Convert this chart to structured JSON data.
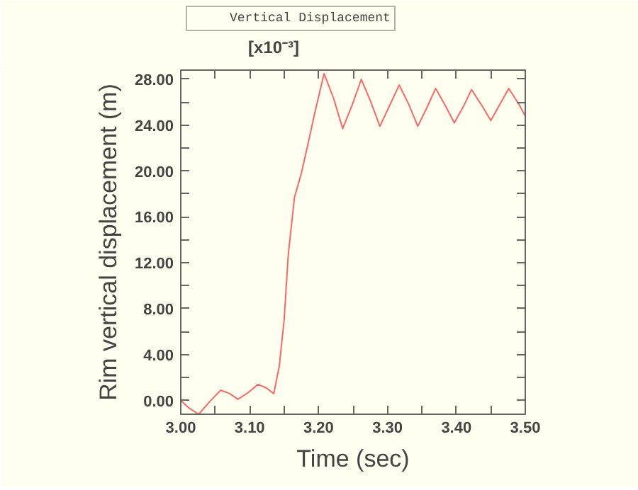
{
  "chart_data": {
    "type": "line",
    "xlabel": "Time (sec)",
    "ylabel": "Rim vertical displacement (m)",
    "annotations": [
      "[x10⁻³]"
    ],
    "x": [
      3.0,
      3.013,
      3.026,
      3.042,
      3.058,
      3.071,
      3.083,
      3.098,
      3.112,
      3.124,
      3.135,
      3.143,
      3.15,
      3.156,
      3.165,
      3.175,
      3.184,
      3.195,
      3.208,
      3.222,
      3.235,
      3.249,
      3.262,
      3.276,
      3.289,
      3.303,
      3.317,
      3.331,
      3.344,
      3.357,
      3.37,
      3.384,
      3.397,
      3.41,
      3.422,
      3.436,
      3.45,
      3.463,
      3.476,
      3.49,
      3.5
    ],
    "series": [
      {
        "name": "Vertical Displacement",
        "color": "#ff6666",
        "values": [
          0.0,
          -0.7,
          -1.2,
          -0.1,
          0.9,
          0.6,
          0.1,
          0.7,
          1.4,
          1.1,
          0.6,
          3.0,
          7.0,
          12.7,
          17.7,
          19.8,
          22.2,
          25.2,
          28.5,
          26.3,
          23.7,
          25.8,
          28.0,
          26.0,
          23.9,
          25.7,
          27.5,
          25.8,
          23.9,
          25.5,
          27.2,
          25.7,
          24.2,
          25.6,
          27.1,
          25.8,
          24.4,
          25.8,
          27.2,
          25.9,
          24.8
        ]
      }
    ],
    "xlim": [
      3.0,
      3.5
    ],
    "ylim": [
      -1.2,
      28.8
    ],
    "xticks": [
      {
        "value": 3.0,
        "label": "3.00"
      },
      {
        "value": 3.05,
        "label": null
      },
      {
        "value": 3.1,
        "label": "3.10"
      },
      {
        "value": 3.15,
        "label": null
      },
      {
        "value": 3.2,
        "label": "3.20"
      },
      {
        "value": 3.25,
        "label": null
      },
      {
        "value": 3.3,
        "label": "3.30"
      },
      {
        "value": 3.35,
        "label": null
      },
      {
        "value": 3.4,
        "label": "3.40"
      },
      {
        "value": 3.45,
        "label": null
      },
      {
        "value": 3.5,
        "label": "3.50"
      }
    ],
    "yticks": [
      {
        "value": 0,
        "label": "0.00"
      },
      {
        "value": 2,
        "label": null
      },
      {
        "value": 4,
        "label": "4.00"
      },
      {
        "value": 6,
        "label": null
      },
      {
        "value": 8,
        "label": "8.00"
      },
      {
        "value": 10,
        "label": null
      },
      {
        "value": 12,
        "label": "12.00"
      },
      {
        "value": 14,
        "label": null
      },
      {
        "value": 16,
        "label": "16.00"
      },
      {
        "value": 18,
        "label": null
      },
      {
        "value": 20,
        "label": "20.00"
      },
      {
        "value": 22,
        "label": null
      },
      {
        "value": 24,
        "label": "24.00"
      },
      {
        "value": 26,
        "label": null
      },
      {
        "value": 28,
        "label": "28.00"
      }
    ],
    "grid": false,
    "legend": "top left",
    "marker": "none",
    "line_style": "solid"
  }
}
